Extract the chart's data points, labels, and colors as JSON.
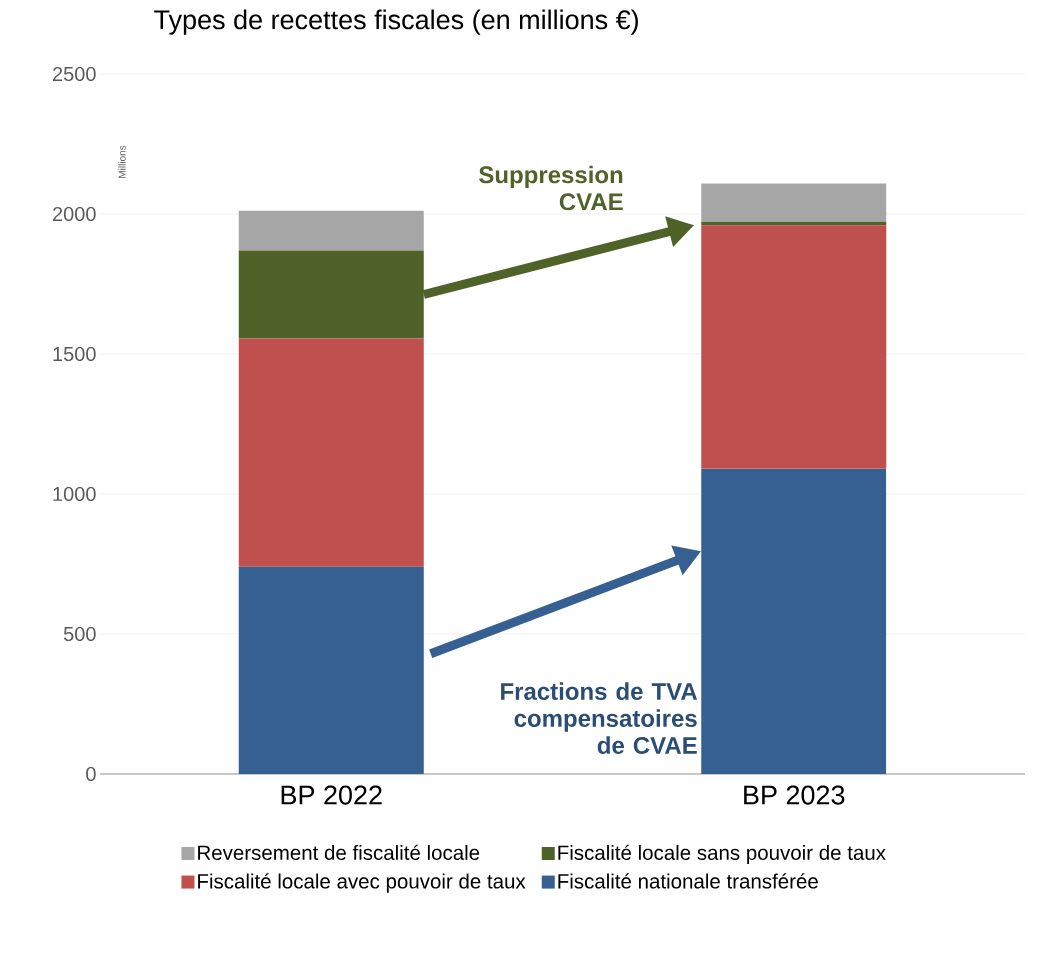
{
  "chart_data": {
    "type": "bar",
    "stacked": true,
    "title": "Types de recettes fiscales (en millions €)",
    "ylabel": "Millions",
    "categories": [
      "BP 2022",
      "BP 2023"
    ],
    "series": [
      {
        "name": "Fiscalité nationale transférée",
        "color": "#366092",
        "values": [
          740,
          1090
        ]
      },
      {
        "name": "Fiscalité locale avec pouvoir de taux",
        "color": "#c0504d",
        "values": [
          815,
          870
        ]
      },
      {
        "name": "Fiscalité locale sans pouvoir de taux",
        "color": "#4f6228",
        "values": [
          315,
          12
        ]
      },
      {
        "name": "Reversement de fiscalité locale",
        "color": "#a6a6a6",
        "values": [
          142,
          137
        ]
      }
    ],
    "ylim": [
      0,
      2500
    ],
    "yticks": [
      0,
      500,
      1000,
      1500,
      2000,
      2500
    ],
    "grid": "y",
    "legend": "bottom",
    "annotations": [
      "Suppression CVAE",
      "Fractions de TVA compensatoires de CVAE"
    ]
  }
}
